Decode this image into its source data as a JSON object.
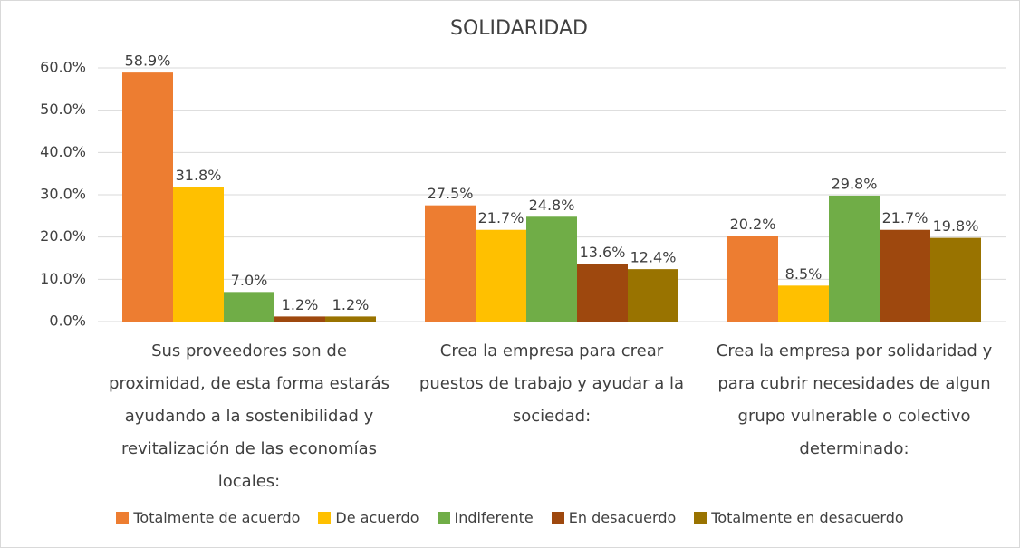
{
  "chart_data": {
    "type": "bar",
    "title": "SOLIDARIDAD",
    "categories": [
      "Sus proveedores son de proximidad, de esta forma estarás ayudando a la sostenibilidad y revitalización de las economías locales:",
      "Crea la empresa para crear puestos de trabajo y ayudar a la sociedad:",
      "Crea la empresa por solidaridad y para cubrir necesidades de algun grupo vulnerable o colectivo determinado:"
    ],
    "series": [
      {
        "name": "Totalmente de acuerdo",
        "color": "#ED7D31",
        "values": [
          58.9,
          27.5,
          20.2
        ],
        "value_labels": [
          "58.9%",
          "27.5%",
          "20.2%"
        ]
      },
      {
        "name": "De acuerdo",
        "color": "#FFC000",
        "values": [
          31.8,
          21.7,
          8.5
        ],
        "value_labels": [
          "31.8%",
          "21.7%",
          "8.5%"
        ]
      },
      {
        "name": "Indiferente",
        "color": "#70AD47",
        "values": [
          7.0,
          24.8,
          29.8
        ],
        "value_labels": [
          "7.0%",
          "24.8%",
          "29.8%"
        ]
      },
      {
        "name": "En desacuerdo",
        "color": "#9E480E",
        "values": [
          1.2,
          13.6,
          21.7
        ],
        "value_labels": [
          "1.2%",
          "13.6%",
          "21.7%"
        ]
      },
      {
        "name": "Totalmente en desacuerdo",
        "color": "#997300",
        "values": [
          1.2,
          12.4,
          19.8
        ],
        "value_labels": [
          "1.2%",
          "12.4%",
          "19.8%"
        ]
      }
    ],
    "ylim": [
      0,
      60
    ],
    "yticks": [
      {
        "value": 0,
        "label": "0.0%"
      },
      {
        "value": 10,
        "label": "10.0%"
      },
      {
        "value": 20,
        "label": "20.0%"
      },
      {
        "value": 30,
        "label": "30.0%"
      },
      {
        "value": 40,
        "label": "40.0%"
      },
      {
        "value": 50,
        "label": "50.0%"
      },
      {
        "value": 60,
        "label": "60.0%"
      }
    ],
    "grid": true,
    "legend": "bottom"
  }
}
